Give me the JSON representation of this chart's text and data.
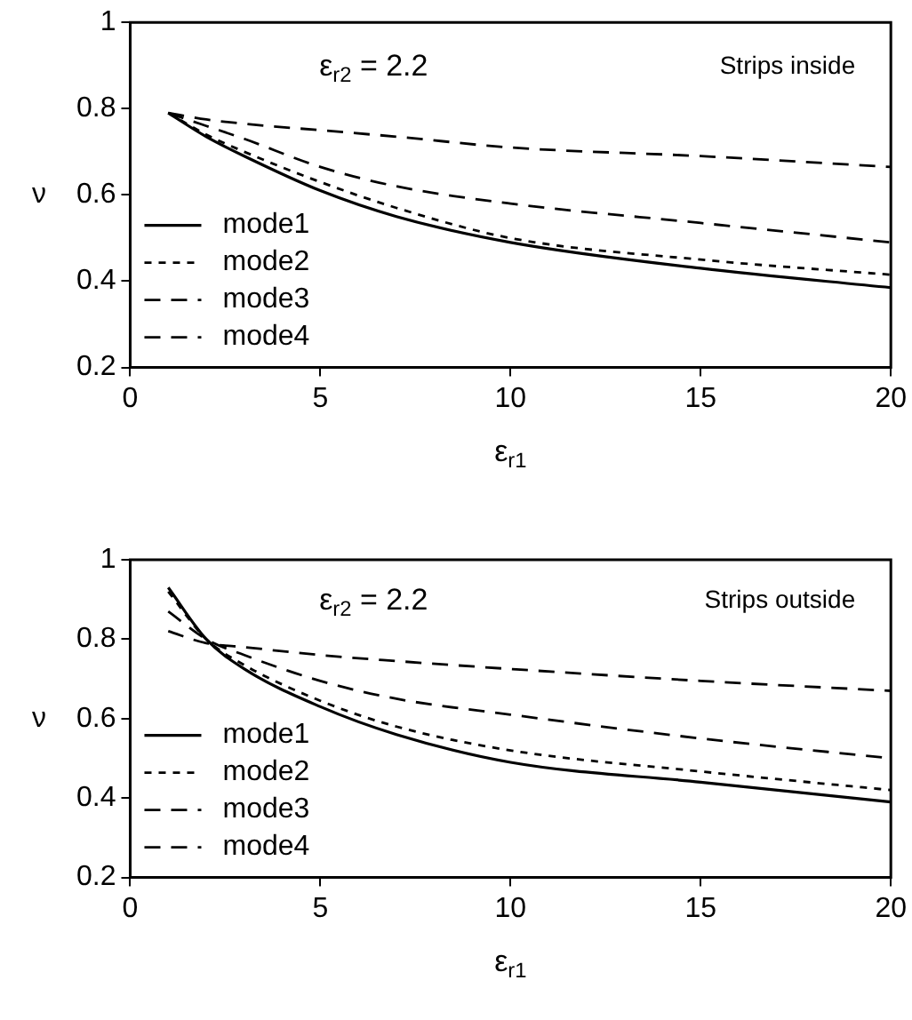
{
  "chart_data": [
    {
      "type": "line",
      "xlabel": "ε$_{r1}$",
      "ylabel": "ν",
      "annotations": [
        "ε$_{r2}$ = 2.2",
        "Strips inside"
      ],
      "xlim": [
        0,
        20
      ],
      "xticks": [
        0,
        5,
        10,
        15,
        20
      ],
      "ylim": [
        0.2,
        1
      ],
      "yticks": [
        0.2,
        0.4,
        0.6,
        0.8,
        1
      ],
      "grid": false,
      "legend": "bottom left",
      "marker": "none",
      "x": [
        1,
        2,
        3,
        5,
        7,
        10,
        15,
        20
      ],
      "series": [
        {
          "name": "mode1",
          "color": "#000000",
          "line_style": "solid",
          "values": [
            0.79,
            0.735,
            0.69,
            0.61,
            0.55,
            0.49,
            0.43,
            0.385
          ]
        },
        {
          "name": "mode2",
          "color": "#000000",
          "line_style": "dotted",
          "values": [
            0.79,
            0.74,
            0.7,
            0.63,
            0.57,
            0.5,
            0.45,
            0.415
          ]
        },
        {
          "name": "mode3",
          "color": "#000000",
          "line_style": "dashed",
          "values": [
            0.79,
            0.76,
            0.73,
            0.665,
            0.62,
            0.58,
            0.535,
            0.49
          ]
        },
        {
          "name": "mode4",
          "color": "#000000",
          "line_style": "dashed",
          "values": [
            0.79,
            0.775,
            0.765,
            0.75,
            0.735,
            0.71,
            0.69,
            0.665
          ]
        }
      ]
    },
    {
      "type": "line",
      "xlabel": "ε$_{r1}$",
      "ylabel": "ν",
      "annotations": [
        "ε$_{r2}$ = 2.2",
        "Strips outside"
      ],
      "xlim": [
        0,
        20
      ],
      "xticks": [
        0,
        5,
        10,
        15,
        20
      ],
      "ylim": [
        0.2,
        1
      ],
      "yticks": [
        0.2,
        0.4,
        0.6,
        0.8,
        1
      ],
      "grid": false,
      "legend": "bottom left",
      "marker": "none",
      "x": [
        1,
        2,
        3,
        5,
        7,
        10,
        15,
        20
      ],
      "series": [
        {
          "name": "mode1",
          "color": "#000000",
          "line_style": "solid",
          "values": [
            0.93,
            0.8,
            0.725,
            0.63,
            0.56,
            0.49,
            0.44,
            0.39
          ]
        },
        {
          "name": "mode2",
          "color": "#000000",
          "line_style": "dotted",
          "values": [
            0.92,
            0.8,
            0.735,
            0.645,
            0.58,
            0.52,
            0.467,
            0.42
          ]
        },
        {
          "name": "mode3",
          "color": "#000000",
          "line_style": "dashed",
          "values": [
            0.87,
            0.8,
            0.76,
            0.695,
            0.65,
            0.61,
            0.55,
            0.5
          ]
        },
        {
          "name": "mode4",
          "color": "#000000",
          "line_style": "dashed",
          "values": [
            0.82,
            0.79,
            0.78,
            0.76,
            0.745,
            0.725,
            0.695,
            0.67
          ]
        }
      ]
    }
  ]
}
